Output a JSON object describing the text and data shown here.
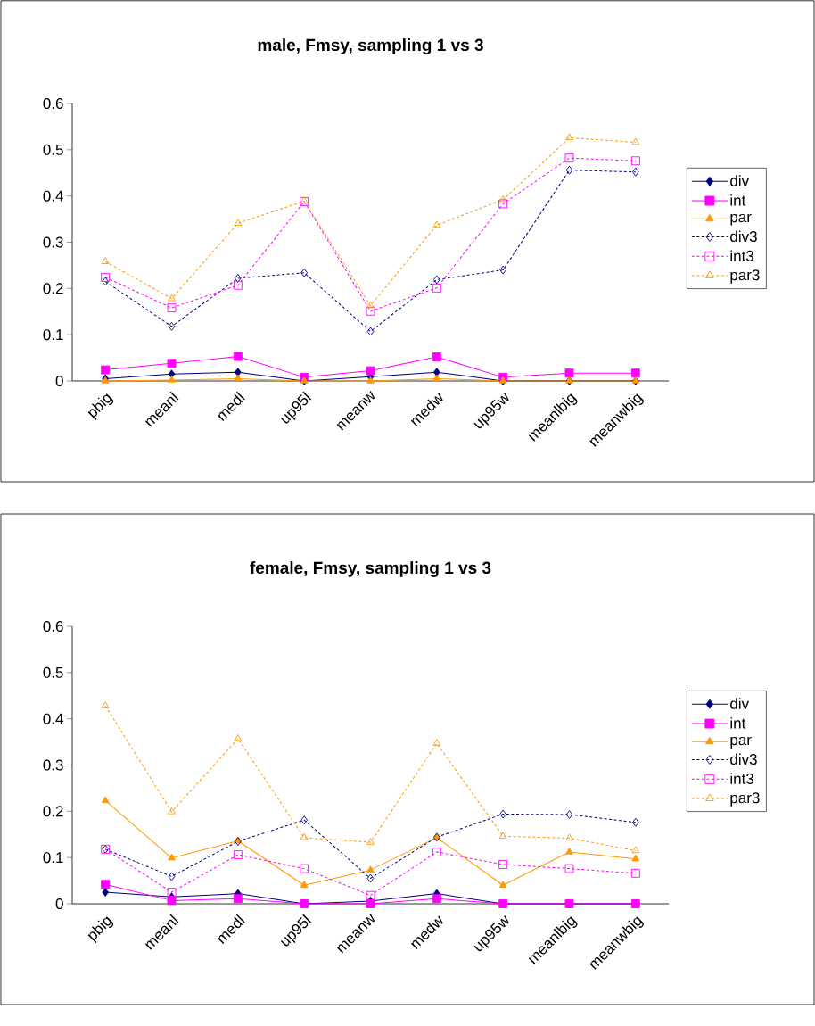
{
  "chart_data": [
    {
      "type": "line",
      "title": "male, Fmsy, sampling 1 vs 3",
      "categories": [
        "pbig",
        "meanl",
        "medl",
        "up95l",
        "meanw",
        "medw",
        "up95w",
        "meanlbig",
        "meanwbig"
      ],
      "series": [
        {
          "name": "div",
          "color": "#000080",
          "marker": "diamond",
          "line_style": "solid",
          "values": [
            0.005,
            0.015,
            0.019,
            0,
            0.009,
            0.019,
            0,
            0,
            0
          ]
        },
        {
          "name": "int",
          "color": "#ff00ff",
          "marker": "square",
          "line_style": "solid",
          "values": [
            0.024,
            0.038,
            0.053,
            0.008,
            0.022,
            0.052,
            0.008,
            0.017,
            0.017
          ]
        },
        {
          "name": "par",
          "color": "#ff9900",
          "marker": "triangle",
          "line_style": "solid",
          "values": [
            0,
            0.002,
            0.005,
            0,
            0,
            0.005,
            0,
            0,
            0
          ]
        },
        {
          "name": "div3",
          "color": "#000080",
          "marker": "diamond",
          "line_style": "dashed",
          "values": [
            0.215,
            0.118,
            0.222,
            0.234,
            0.107,
            0.219,
            0.24,
            0.456,
            0.452
          ]
        },
        {
          "name": "int3",
          "color": "#ff00ff",
          "marker": "square",
          "line_style": "dashed",
          "values": [
            0.224,
            0.158,
            0.207,
            0.388,
            0.151,
            0.201,
            0.383,
            0.482,
            0.476
          ]
        },
        {
          "name": "par3",
          "color": "#ff9900",
          "marker": "triangle",
          "line_style": "dashed",
          "values": [
            0.258,
            0.178,
            0.341,
            0.389,
            0.163,
            0.337,
            0.392,
            0.526,
            0.516
          ]
        }
      ],
      "ylim": [
        0,
        0.6
      ],
      "yticks": [
        0,
        0.1,
        0.2,
        0.3,
        0.4,
        0.5,
        0.6
      ],
      "grid": false,
      "legend": "right"
    },
    {
      "type": "line",
      "title": "female, Fmsy, sampling 1 vs 3",
      "categories": [
        "pbig",
        "meanl",
        "medl",
        "up95l",
        "meanw",
        "medw",
        "up95w",
        "meanlbig",
        "meanwbig"
      ],
      "series": [
        {
          "name": "div",
          "color": "#000080",
          "marker": "diamond",
          "line_style": "solid",
          "values": [
            0.025,
            0.015,
            0.022,
            0,
            0.006,
            0.022,
            0,
            0,
            0
          ]
        },
        {
          "name": "int",
          "color": "#ff00ff",
          "marker": "square",
          "line_style": "solid",
          "values": [
            0.042,
            0.007,
            0.011,
            0,
            0,
            0.011,
            0,
            0,
            0
          ]
        },
        {
          "name": "par",
          "color": "#ff9900",
          "marker": "triangle",
          "line_style": "solid",
          "values": [
            0.223,
            0.099,
            0.136,
            0.04,
            0.073,
            0.143,
            0.04,
            0.112,
            0.097
          ]
        },
        {
          "name": "div3",
          "color": "#000080",
          "marker": "diamond",
          "line_style": "dashed",
          "values": [
            0.118,
            0.059,
            0.135,
            0.181,
            0.055,
            0.144,
            0.194,
            0.193,
            0.176
          ]
        },
        {
          "name": "int3",
          "color": "#ff00ff",
          "marker": "square",
          "line_style": "dashed",
          "values": [
            0.118,
            0.025,
            0.106,
            0.076,
            0.018,
            0.112,
            0.085,
            0.076,
            0.066
          ]
        },
        {
          "name": "par3",
          "color": "#ff9900",
          "marker": "triangle",
          "line_style": "dashed",
          "values": [
            0.428,
            0.199,
            0.357,
            0.143,
            0.133,
            0.347,
            0.146,
            0.142,
            0.115
          ]
        }
      ],
      "ylim": [
        0,
        0.6
      ],
      "yticks": [
        0,
        0.1,
        0.2,
        0.3,
        0.4,
        0.5,
        0.6
      ],
      "grid": false,
      "legend": "right"
    }
  ]
}
